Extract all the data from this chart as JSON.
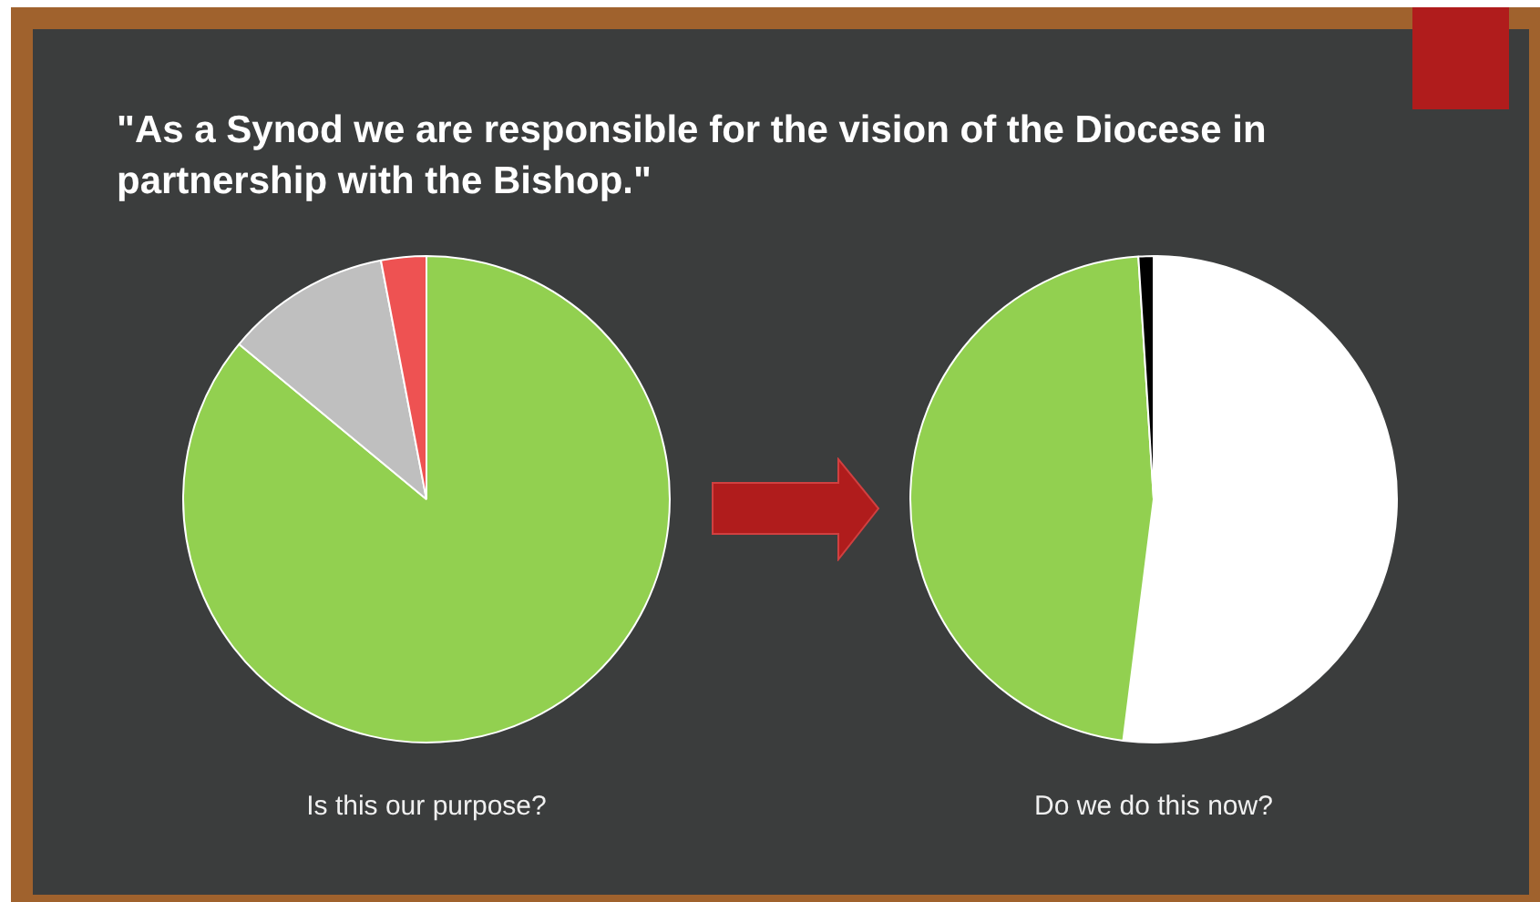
{
  "chart_data": [
    {
      "type": "pie",
      "title": "\"As a Synod we are responsible for the vision of the Diocese in partnership with the Bishop.\"",
      "xlabel": "Is this our purpose?",
      "categories": [
        null,
        null,
        null
      ],
      "values": [
        86,
        11,
        3
      ],
      "colors": [
        "#92d050",
        "#bfbfbf",
        "#ee5252"
      ],
      "legend": false
    },
    {
      "type": "pie",
      "xlabel": "Do we do this now?",
      "categories": [
        null,
        null,
        null
      ],
      "values": [
        52,
        47,
        1
      ],
      "colors": [
        "#ffffff",
        "#92d050",
        "#000000"
      ],
      "legend": false
    }
  ]
}
